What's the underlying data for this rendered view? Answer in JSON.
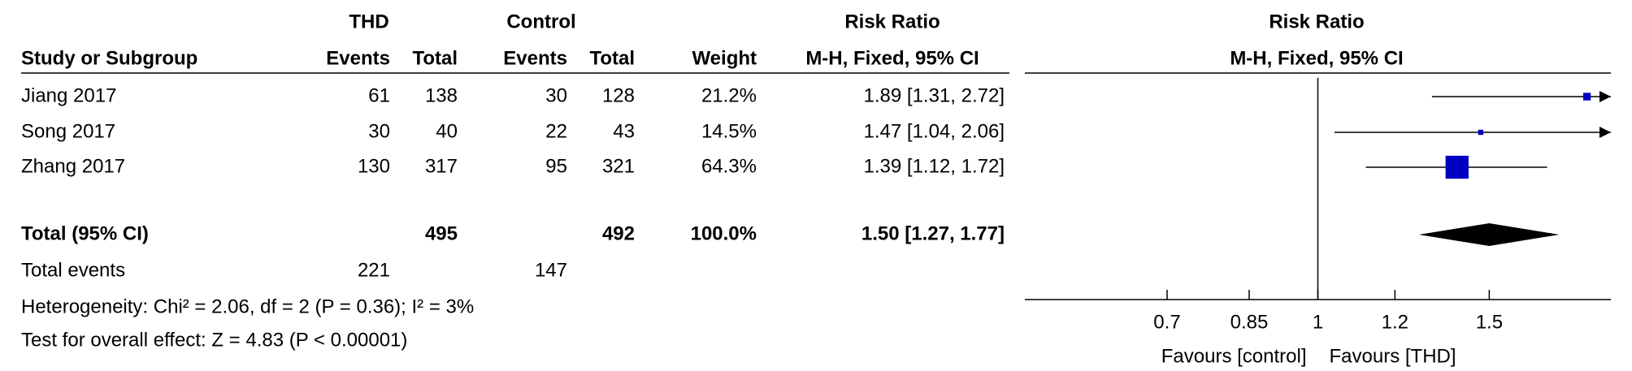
{
  "chart_data": {
    "type": "forest",
    "groups": [
      "THD",
      "Control",
      "Risk Ratio"
    ],
    "columns": [
      "Study or Subgroup",
      "Events",
      "Total",
      "Events",
      "Total",
      "Weight",
      "M-H, Fixed, 95% CI"
    ],
    "plot_title": "Risk Ratio",
    "plot_subtitle": "M-H, Fixed, 95% CI",
    "studies": [
      {
        "name": "Jiang 2017",
        "events_t": 61,
        "total_t": 138,
        "events_c": 30,
        "total_c": 128,
        "weight": 21.2,
        "weight_label": "21.2%",
        "effect": 1.89,
        "ci": [
          1.31,
          2.72
        ],
        "effect_label": "1.89 [1.31, 2.72]"
      },
      {
        "name": "Song 2017",
        "events_t": 30,
        "total_t": 40,
        "events_c": 22,
        "total_c": 43,
        "weight": 14.5,
        "weight_label": "14.5%",
        "effect": 1.47,
        "ci": [
          1.04,
          2.06
        ],
        "effect_label": "1.47 [1.04, 2.06]"
      },
      {
        "name": "Zhang 2017",
        "events_t": 130,
        "total_t": 317,
        "events_c": 95,
        "total_c": 321,
        "weight": 64.3,
        "weight_label": "64.3%",
        "effect": 1.39,
        "ci": [
          1.12,
          1.72
        ],
        "effect_label": "1.39 [1.12, 1.72]"
      }
    ],
    "total": {
      "name": "Total (95% CI)",
      "total_t": 495,
      "total_c": 492,
      "weight": 100,
      "weight_label": "100.0%",
      "effect": 1.5,
      "ci": [
        1.27,
        1.77
      ],
      "effect_label": "1.50 [1.27, 1.77]"
    },
    "total_events": {
      "name": "Total events",
      "events_t": 221,
      "events_c": 147
    },
    "heterogeneity": "Heterogeneity: Chi² = 2.06, df = 2 (P = 0.36); I² = 3%",
    "overall_effect": "Test for overall effect: Z = 4.83 (P < 0.00001)",
    "x_scale": "log",
    "xlim": [
      0.5,
      2
    ],
    "xticks": [
      0.7,
      0.85,
      1,
      1.2,
      1.5
    ],
    "x_labels": [
      "Favours [control]",
      "Favours [THD]"
    ],
    "color": "#0000c0"
  }
}
